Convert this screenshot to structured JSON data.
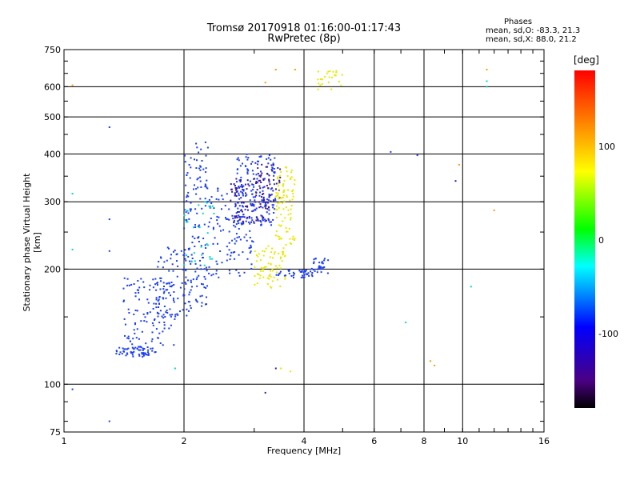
{
  "header": {
    "title_line1": "Tromsø 20170918 01:16:00-01:17:43",
    "title_line2": "RwPretec (8p)",
    "phase_title": "Phases",
    "phase_o": "mean, sd,O: -83.3, 21.3",
    "phase_x": "mean, sd,X:  88.0, 21.2"
  },
  "colorbar": {
    "unit": "[deg]",
    "ticks": [
      "100",
      "0",
      "-100"
    ],
    "colors": [
      "#000000",
      "#4b0082",
      "#0000ff",
      "#00ffff",
      "#00ff00",
      "#ffff00",
      "#ff8000",
      "#ff0000"
    ]
  },
  "chart_data": {
    "type": "scatter",
    "xlabel": "Frequency [MHz]",
    "ylabel": "Stationary phase Virtual Height [km]",
    "x_scale": "log",
    "y_scale": "log",
    "xlim": [
      1,
      16
    ],
    "ylim": [
      75,
      750
    ],
    "x_ticks": [
      1,
      2,
      4,
      6,
      8,
      10,
      16
    ],
    "y_ticks": [
      75,
      100,
      200,
      300,
      400,
      500,
      600,
      750
    ],
    "grid": true,
    "series": [
      {
        "color_group": "blue (O-mode, ~-100 deg)",
        "color": "#1a3cff",
        "clusters": [
          {
            "x_range": [
              1.35,
              1.7
            ],
            "y_range": [
              118,
              125
            ],
            "n": 60
          },
          {
            "x_range": [
              1.4,
              1.9
            ],
            "y_range": [
              125,
              190
            ],
            "n": 120
          },
          {
            "x_range": [
              1.7,
              2.1
            ],
            "y_range": [
              150,
              230
            ],
            "n": 80
          },
          {
            "x_range": [
              2.0,
              2.3
            ],
            "y_range": [
              160,
              430
            ],
            "n": 140
          },
          {
            "x_range": [
              2.3,
              3.0
            ],
            "y_range": [
              190,
              330
            ],
            "n": 120
          },
          {
            "x_range": [
              2.7,
              3.4
            ],
            "y_range": [
              260,
              400
            ],
            "n": 160
          },
          {
            "x_range": [
              3.4,
              4.2
            ],
            "y_range": [
              190,
              200
            ],
            "n": 40
          },
          {
            "x_range": [
              4.1,
              4.6
            ],
            "y_range": [
              195,
              215
            ],
            "n": 30
          }
        ],
        "points": [
          [
            1.3,
            470
          ],
          [
            1.3,
            270
          ],
          [
            1.3,
            223
          ],
          [
            1.05,
            97
          ],
          [
            1.3,
            80
          ],
          [
            6.6,
            405
          ],
          [
            7.7,
            397
          ]
        ]
      },
      {
        "color_group": "dark purple",
        "color": "#3a1a9a",
        "clusters": [
          {
            "x_range": [
              2.6,
              3.3
            ],
            "y_range": [
              265,
              345
            ],
            "n": 90
          },
          {
            "x_range": [
              3.0,
              3.5
            ],
            "y_range": [
              300,
              380
            ],
            "n": 50
          }
        ],
        "points": [
          [
            9.6,
            340
          ],
          [
            3.4,
            110
          ],
          [
            3.2,
            95
          ]
        ]
      },
      {
        "color_group": "yellow (X-mode, ~+100 deg)",
        "color": "#e8e800",
        "clusters": [
          {
            "x_range": [
              3.0,
              3.6
            ],
            "y_range": [
              178,
              230
            ],
            "n": 70
          },
          {
            "x_range": [
              3.4,
              3.8
            ],
            "y_range": [
              230,
              370
            ],
            "n": 90
          },
          {
            "x_range": [
              4.3,
              5.0
            ],
            "y_range": [
              590,
              660
            ],
            "n": 25
          }
        ],
        "points": [
          [
            3.5,
            110
          ],
          [
            3.7,
            108
          ]
        ]
      },
      {
        "color_group": "orange",
        "color": "#ff9a00",
        "clusters": [],
        "points": [
          [
            8.5,
            112
          ],
          [
            8.3,
            115
          ],
          [
            9.8,
            375
          ],
          [
            12.0,
            285
          ],
          [
            11.5,
            665
          ],
          [
            3.2,
            615
          ],
          [
            1.05,
            605
          ],
          [
            3.4,
            665
          ],
          [
            3.8,
            665
          ]
        ]
      },
      {
        "color_group": "cyan/green",
        "color": "#00d8c8",
        "clusters": [
          {
            "x_range": [
              2.0,
              2.4
            ],
            "y_range": [
              200,
              300
            ],
            "n": 30
          }
        ],
        "points": [
          [
            11.5,
            620
          ],
          [
            11.5,
            600
          ],
          [
            10.5,
            180
          ],
          [
            7.2,
            145
          ],
          [
            1.05,
            225
          ],
          [
            1.05,
            315
          ],
          [
            1.9,
            110
          ]
        ]
      }
    ]
  }
}
